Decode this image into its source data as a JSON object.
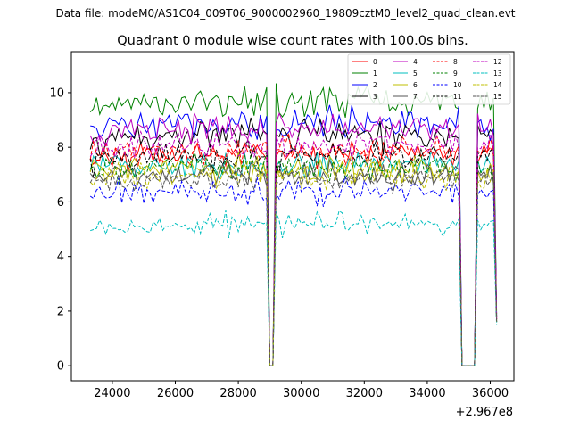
{
  "header": {
    "data_file": "Data file: modeM0/AS1C04_009T06_9000002960_19809cztM0_level2_quad_clean.evt"
  },
  "chart_data": {
    "type": "line",
    "title": "Quadrant 0 module wise count rates with 100.0s bins.",
    "xlabel": "",
    "ylabel": "",
    "x_offset_label": "+2.967e8",
    "xlim": [
      22700,
      36750
    ],
    "ylim": [
      -0.55,
      11.5
    ],
    "xticks": [
      24000,
      26000,
      28000,
      30000,
      32000,
      34000,
      36000
    ],
    "yticks": [
      0,
      2,
      4,
      6,
      8,
      10
    ],
    "grid": false,
    "legend_position": "top-right",
    "time_range": [
      23300,
      36200
    ],
    "bin_width": 100,
    "gaps": [
      [
        29000,
        29100
      ],
      [
        35100,
        35500
      ]
    ],
    "series": [
      {
        "name": "0",
        "color": "#ff0000",
        "style": "solid",
        "mean": 7.8,
        "noise": 0.35,
        "trend": 0.2,
        "end_value": 1.7
      },
      {
        "name": "1",
        "color": "#008000",
        "style": "solid",
        "mean": 9.7,
        "noise": 0.4,
        "trend": 0.3,
        "end_value": 1.9
      },
      {
        "name": "2",
        "color": "#0000ff",
        "style": "solid",
        "mean": 8.9,
        "noise": 0.4,
        "trend": 0.2,
        "end_value": 1.8
      },
      {
        "name": "3",
        "color": "#000000",
        "style": "solid",
        "mean": 8.5,
        "noise": 0.4,
        "trend": 0.3,
        "end_value": 1.8
      },
      {
        "name": "4",
        "color": "#bf00bf",
        "style": "solid",
        "mean": 8.7,
        "noise": 0.35,
        "trend": 0.2,
        "end_value": 1.8
      },
      {
        "name": "5",
        "color": "#00bfbf",
        "style": "solid",
        "mean": 7.4,
        "noise": 0.35,
        "trend": 0.1,
        "end_value": 1.6
      },
      {
        "name": "6",
        "color": "#bfbf00",
        "style": "solid",
        "mean": 7.2,
        "noise": 0.35,
        "trend": 0.1,
        "end_value": 1.6
      },
      {
        "name": "7",
        "color": "#555555",
        "style": "solid",
        "mean": 7.0,
        "noise": 0.3,
        "trend": 0.1,
        "end_value": 1.6
      },
      {
        "name": "8",
        "color": "#ff0000",
        "style": "dashed",
        "mean": 7.9,
        "noise": 0.35,
        "trend": 0.2,
        "end_value": 1.7
      },
      {
        "name": "9",
        "color": "#008000",
        "style": "dashed",
        "mean": 7.3,
        "noise": 0.35,
        "trend": 0.1,
        "end_value": 1.6
      },
      {
        "name": "10",
        "color": "#0000ff",
        "style": "dashed",
        "mean": 6.4,
        "noise": 0.35,
        "trend": 0.1,
        "end_value": 1.6
      },
      {
        "name": "11",
        "color": "#000000",
        "style": "dashed",
        "mean": 7.7,
        "noise": 0.35,
        "trend": 0.2,
        "end_value": 1.7
      },
      {
        "name": "12",
        "color": "#bf00bf",
        "style": "dashed",
        "mean": 8.1,
        "noise": 0.35,
        "trend": 0.2,
        "end_value": 1.7
      },
      {
        "name": "13",
        "color": "#00bfbf",
        "style": "dashed",
        "mean": 5.2,
        "noise": 0.3,
        "trend": 0.2,
        "end_value": 1.5
      },
      {
        "name": "14",
        "color": "#bfbf00",
        "style": "dashed",
        "mean": 7.0,
        "noise": 0.35,
        "trend": 0.1,
        "end_value": 1.6
      },
      {
        "name": "15",
        "color": "#555555",
        "style": "dashed",
        "mean": 6.8,
        "noise": 0.3,
        "trend": 0.1,
        "end_value": 1.6
      }
    ]
  }
}
